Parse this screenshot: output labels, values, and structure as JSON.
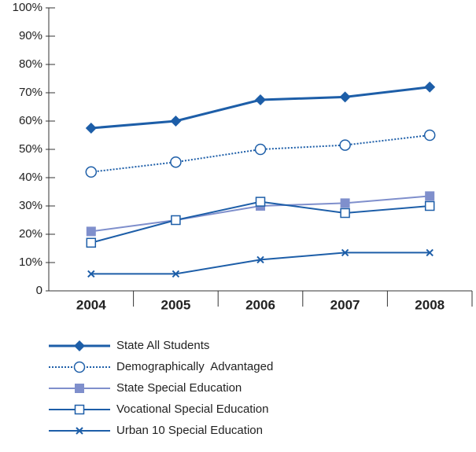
{
  "chart_data": {
    "type": "line",
    "categories": [
      "2004",
      "2005",
      "2006",
      "2007",
      "2008"
    ],
    "ylim": [
      0,
      100
    ],
    "yticks": [
      0,
      {
        "value": 10,
        "label": "10%"
      },
      {
        "value": 20,
        "label": "20%"
      },
      {
        "value": 30,
        "label": "30%"
      },
      {
        "value": 40,
        "label": "40%"
      },
      {
        "value": 50,
        "label": "50%"
      },
      {
        "value": 60,
        "label": "60%"
      },
      {
        "value": 70,
        "label": "70%"
      },
      {
        "value": 80,
        "label": "80%"
      },
      {
        "value": 90,
        "label": "90%"
      },
      {
        "value": 100,
        "label": "100%"
      }
    ],
    "grid": false,
    "series": [
      {
        "name": "State All Students",
        "color": "#1d5ea8",
        "marker": "diamond",
        "dash": "solid",
        "values": [
          57.5,
          60,
          67.5,
          68.5,
          72
        ]
      },
      {
        "name": "Demographically  Advantaged",
        "color": "#1d5ea8",
        "marker": "circle-open",
        "dash": "dotted",
        "values": [
          42,
          45.5,
          50,
          51.5,
          55
        ]
      },
      {
        "name": "State Special Education",
        "color": "#7f8fcc",
        "marker": "square",
        "dash": "solid",
        "values": [
          21,
          25,
          30,
          31,
          33.5
        ]
      },
      {
        "name": "Vocational Special Education",
        "color": "#1d5ea8",
        "marker": "square-open",
        "dash": "solid",
        "values": [
          17,
          25,
          31.5,
          27.5,
          30
        ]
      },
      {
        "name": "Urban 10 Special Education",
        "color": "#1d5ea8",
        "marker": "x",
        "dash": "solid",
        "values": [
          6,
          6,
          11,
          13.5,
          13.5
        ]
      }
    ]
  }
}
